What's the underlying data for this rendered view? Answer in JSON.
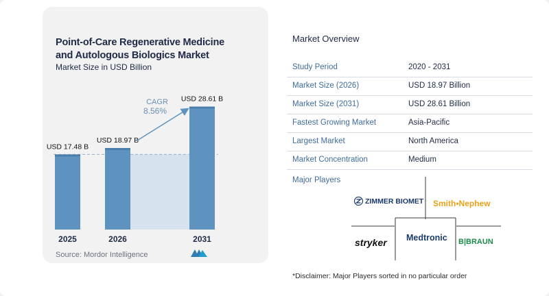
{
  "chart": {
    "title": "Point-of-Care Regenerative Medicine and Autologous Biologics Market",
    "subtitle": "Market Size in USD Billion",
    "source": "Source:",
    "source_name": "Mordor Intelligence",
    "cagr_label": "CAGR",
    "cagr_value": "8.56%"
  },
  "chart_data": {
    "type": "bar",
    "categories": [
      "2025",
      "2026",
      "2031"
    ],
    "values": [
      17.48,
      18.97,
      28.61
    ],
    "data_labels": [
      "USD 17.48 B",
      "USD 18.97 B",
      "USD 28.61 B"
    ],
    "title": "Point-of-Care Regenerative Medicine and Autologous Biologics Market",
    "ylabel": "Market Size in USD Billion",
    "ylim": [
      0,
      29.5
    ],
    "annotation": "CAGR 8.56%",
    "colors": {
      "bar": "#5f93bf",
      "bar_top": "#4c7eab",
      "highlight": "#d6e3ee",
      "arrow": "#5f93bf",
      "dashed": "#8fb1d0"
    }
  },
  "overview": {
    "title": "Market Overview",
    "rows": [
      {
        "label": "Study Period",
        "value": "2020 - 2031"
      },
      {
        "label": "Market Size (2026)",
        "value": "USD 18.97 Billion"
      },
      {
        "label": "Market Size (2031)",
        "value": "USD 28.61 Billion"
      },
      {
        "label": "Fastest Growing Market",
        "value": "Asia-Pacific"
      },
      {
        "label": "Largest Market",
        "value": "North America"
      },
      {
        "label": "Market Concentration",
        "value": "Medium"
      }
    ]
  },
  "players": {
    "title": "Major Players",
    "zimmer": "ZIMMER BIOMET",
    "smith": "Smith•Nephew",
    "stryker": "stryker",
    "medtronic": "Medtronic",
    "bbraun": "B|BRAUN"
  },
  "disclaimer": "*Disclaimer: Major Players sorted in no particular order"
}
